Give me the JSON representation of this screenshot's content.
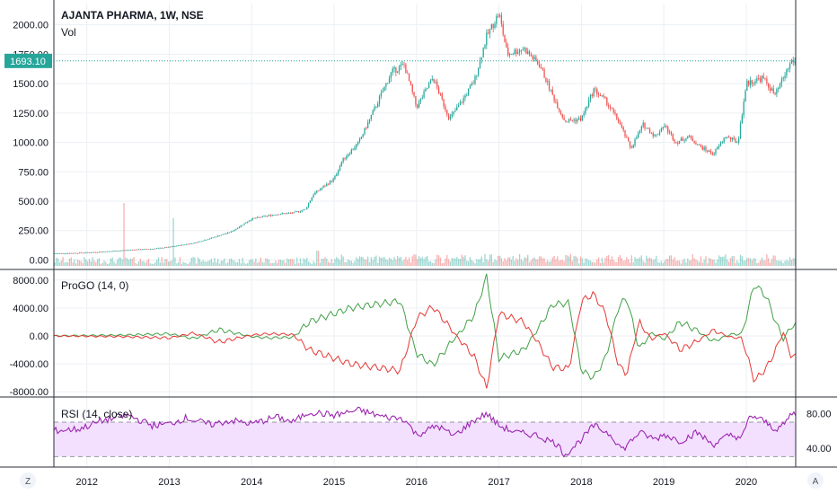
{
  "header": {
    "title": "AJANTA PHARMA, 1W, NSE",
    "volume_label": "Vol"
  },
  "last_price_label": "1693.10",
  "colors": {
    "up": "#26a69a",
    "down": "#ef5350",
    "go_green": "#43a047",
    "go_red": "#e53935",
    "rsi": "#9c27b0",
    "rsi_band": "#f3e0ff",
    "price_tag": "#26a69a",
    "grid": "#eceff3"
  },
  "footer_buttons": {
    "left": "Z",
    "right": "A"
  },
  "chart_data": [
    {
      "type": "candlestick",
      "title": "AJANTA PHARMA, 1W, NSE",
      "ylim": [
        -50,
        2150
      ],
      "y_ticks": [
        "0.00",
        "250.00",
        "500.00",
        "750.00",
        "1000.00",
        "1250.00",
        "1500.00",
        "1750.00",
        "2000.00"
      ],
      "x_ticks": [
        "2012",
        "2013",
        "2014",
        "2015",
        "2016",
        "2017",
        "2018",
        "2019",
        "2020"
      ],
      "last_price": 1693.1,
      "close_anchors": [
        [
          2011.6,
          55
        ],
        [
          2011.9,
          60
        ],
        [
          2012.2,
          70
        ],
        [
          2012.5,
          85
        ],
        [
          2012.8,
          95
        ],
        [
          2013.0,
          110
        ],
        [
          2013.3,
          145
        ],
        [
          2013.5,
          185
        ],
        [
          2013.75,
          240
        ],
        [
          2014.0,
          350
        ],
        [
          2014.3,
          390
        ],
        [
          2014.5,
          400
        ],
        [
          2014.65,
          430
        ],
        [
          2014.75,
          560
        ],
        [
          2015.0,
          690
        ],
        [
          2015.1,
          850
        ],
        [
          2015.3,
          1000
        ],
        [
          2015.5,
          1300
        ],
        [
          2015.7,
          1600
        ],
        [
          2015.85,
          1660
        ],
        [
          2016.0,
          1300
        ],
        [
          2016.2,
          1550
        ],
        [
          2016.4,
          1200
        ],
        [
          2016.55,
          1350
        ],
        [
          2016.7,
          1520
        ],
        [
          2016.85,
          1900
        ],
        [
          2017.0,
          2100
        ],
        [
          2017.1,
          1750
        ],
        [
          2017.3,
          1800
        ],
        [
          2017.5,
          1650
        ],
        [
          2017.65,
          1400
        ],
        [
          2017.8,
          1180
        ],
        [
          2018.0,
          1200
        ],
        [
          2018.15,
          1450
        ],
        [
          2018.3,
          1350
        ],
        [
          2018.45,
          1180
        ],
        [
          2018.6,
          950
        ],
        [
          2018.75,
          1150
        ],
        [
          2018.9,
          1050
        ],
        [
          2019.0,
          1150
        ],
        [
          2019.15,
          1000
        ],
        [
          2019.3,
          1050
        ],
        [
          2019.45,
          960
        ],
        [
          2019.6,
          900
        ],
        [
          2019.75,
          1050
        ],
        [
          2019.9,
          1000
        ],
        [
          2020.0,
          1500
        ],
        [
          2020.2,
          1550
        ],
        [
          2020.35,
          1400
        ],
        [
          2020.55,
          1693
        ]
      ],
      "volume_spikes": [
        [
          2012.45,
          500
        ],
        [
          2013.05,
          380
        ],
        [
          2014.8,
          120
        ],
        [
          2016.9,
          90
        ],
        [
          2017.0,
          80
        ],
        [
          2019.6,
          50
        ],
        [
          2020.1,
          60
        ],
        [
          2020.4,
          40
        ]
      ]
    },
    {
      "type": "line",
      "title": "ProGO (14, 0)",
      "ylim": [
        -8500,
        9000
      ],
      "y_ticks": [
        "-8000.00",
        "-4000.00",
        "0.00",
        "4000.00",
        "8000.00"
      ],
      "series": [
        {
          "color": "#43a047",
          "anchors": [
            [
              2011.6,
              0
            ],
            [
              2012.4,
              100
            ],
            [
              2013.0,
              300
            ],
            [
              2013.3,
              -400
            ],
            [
              2013.6,
              900
            ],
            [
              2014.0,
              -100
            ],
            [
              2014.2,
              -300
            ],
            [
              2014.5,
              -200
            ],
            [
              2014.7,
              2000
            ],
            [
              2015.0,
              3200
            ],
            [
              2015.2,
              4000
            ],
            [
              2015.5,
              4500
            ],
            [
              2015.8,
              5000
            ],
            [
              2016.0,
              -2500
            ],
            [
              2016.2,
              -4200
            ],
            [
              2016.5,
              200
            ],
            [
              2016.7,
              3000
            ],
            [
              2016.85,
              8500
            ],
            [
              2017.0,
              -3200
            ],
            [
              2017.3,
              -2000
            ],
            [
              2017.5,
              1500
            ],
            [
              2017.65,
              4500
            ],
            [
              2017.85,
              4700
            ],
            [
              2018.0,
              -5000
            ],
            [
              2018.15,
              -6000
            ],
            [
              2018.3,
              -3000
            ],
            [
              2018.45,
              4200
            ],
            [
              2018.55,
              5500
            ],
            [
              2018.7,
              -2000
            ],
            [
              2018.85,
              500
            ],
            [
              2019.0,
              -500
            ],
            [
              2019.2,
              2000
            ],
            [
              2019.4,
              800
            ],
            [
              2019.6,
              -800
            ],
            [
              2019.8,
              200
            ],
            [
              2019.95,
              300
            ],
            [
              2020.1,
              7500
            ],
            [
              2020.25,
              5500
            ],
            [
              2020.35,
              2200
            ],
            [
              2020.45,
              -500
            ],
            [
              2020.55,
              1500
            ]
          ]
        },
        {
          "color": "#e53935",
          "anchors": [
            [
              2011.6,
              0
            ],
            [
              2012.4,
              -100
            ],
            [
              2013.0,
              -300
            ],
            [
              2013.3,
              400
            ],
            [
              2013.6,
              -900
            ],
            [
              2014.0,
              100
            ],
            [
              2014.2,
              300
            ],
            [
              2014.5,
              200
            ],
            [
              2014.7,
              -2000
            ],
            [
              2015.0,
              -3200
            ],
            [
              2015.2,
              -4000
            ],
            [
              2015.5,
              -4500
            ],
            [
              2015.8,
              -5000
            ],
            [
              2016.0,
              2500
            ],
            [
              2016.2,
              4200
            ],
            [
              2016.5,
              -200
            ],
            [
              2016.7,
              -3000
            ],
            [
              2016.85,
              -7500
            ],
            [
              2017.0,
              3200
            ],
            [
              2017.3,
              2000
            ],
            [
              2017.5,
              -1500
            ],
            [
              2017.65,
              -4500
            ],
            [
              2017.85,
              -4700
            ],
            [
              2018.0,
              5000
            ],
            [
              2018.15,
              6000
            ],
            [
              2018.3,
              3000
            ],
            [
              2018.45,
              -4200
            ],
            [
              2018.55,
              -5500
            ],
            [
              2018.7,
              2000
            ],
            [
              2018.85,
              -500
            ],
            [
              2019.0,
              500
            ],
            [
              2019.2,
              -2000
            ],
            [
              2019.4,
              -800
            ],
            [
              2019.6,
              800
            ],
            [
              2019.8,
              -200
            ],
            [
              2019.95,
              -300
            ],
            [
              2020.1,
              -6500
            ],
            [
              2020.25,
              -4500
            ],
            [
              2020.35,
              -2200
            ],
            [
              2020.45,
              500
            ],
            [
              2020.55,
              -3000
            ]
          ]
        }
      ]
    },
    {
      "type": "line",
      "title": "RSI (14, close)",
      "ylim": [
        20,
        95
      ],
      "y_ticks": [
        "40.00",
        "80.00"
      ],
      "band": [
        30,
        70
      ],
      "series": [
        {
          "color": "#9c27b0",
          "anchors": [
            [
              2011.6,
              60
            ],
            [
              2011.9,
              62
            ],
            [
              2012.2,
              72
            ],
            [
              2012.5,
              78
            ],
            [
              2012.8,
              66
            ],
            [
              2013.0,
              68
            ],
            [
              2013.2,
              75
            ],
            [
              2013.5,
              67
            ],
            [
              2013.75,
              72
            ],
            [
              2014.0,
              68
            ],
            [
              2014.3,
              76
            ],
            [
              2014.5,
              70
            ],
            [
              2014.7,
              82
            ],
            [
              2015.0,
              78
            ],
            [
              2015.3,
              84
            ],
            [
              2015.6,
              76
            ],
            [
              2015.85,
              74
            ],
            [
              2016.0,
              55
            ],
            [
              2016.25,
              66
            ],
            [
              2016.45,
              54
            ],
            [
              2016.7,
              72
            ],
            [
              2016.85,
              80
            ],
            [
              2017.0,
              66
            ],
            [
              2017.2,
              58
            ],
            [
              2017.45,
              55
            ],
            [
              2017.7,
              45
            ],
            [
              2017.8,
              32
            ],
            [
              2018.0,
              50
            ],
            [
              2018.15,
              66
            ],
            [
              2018.35,
              56
            ],
            [
              2018.5,
              38
            ],
            [
              2018.7,
              58
            ],
            [
              2018.9,
              50
            ],
            [
              2019.0,
              56
            ],
            [
              2019.2,
              48
            ],
            [
              2019.4,
              58
            ],
            [
              2019.6,
              44
            ],
            [
              2019.8,
              55
            ],
            [
              2019.95,
              52
            ],
            [
              2020.05,
              78
            ],
            [
              2020.2,
              72
            ],
            [
              2020.35,
              62
            ],
            [
              2020.45,
              66
            ],
            [
              2020.55,
              80
            ]
          ]
        }
      ]
    }
  ]
}
